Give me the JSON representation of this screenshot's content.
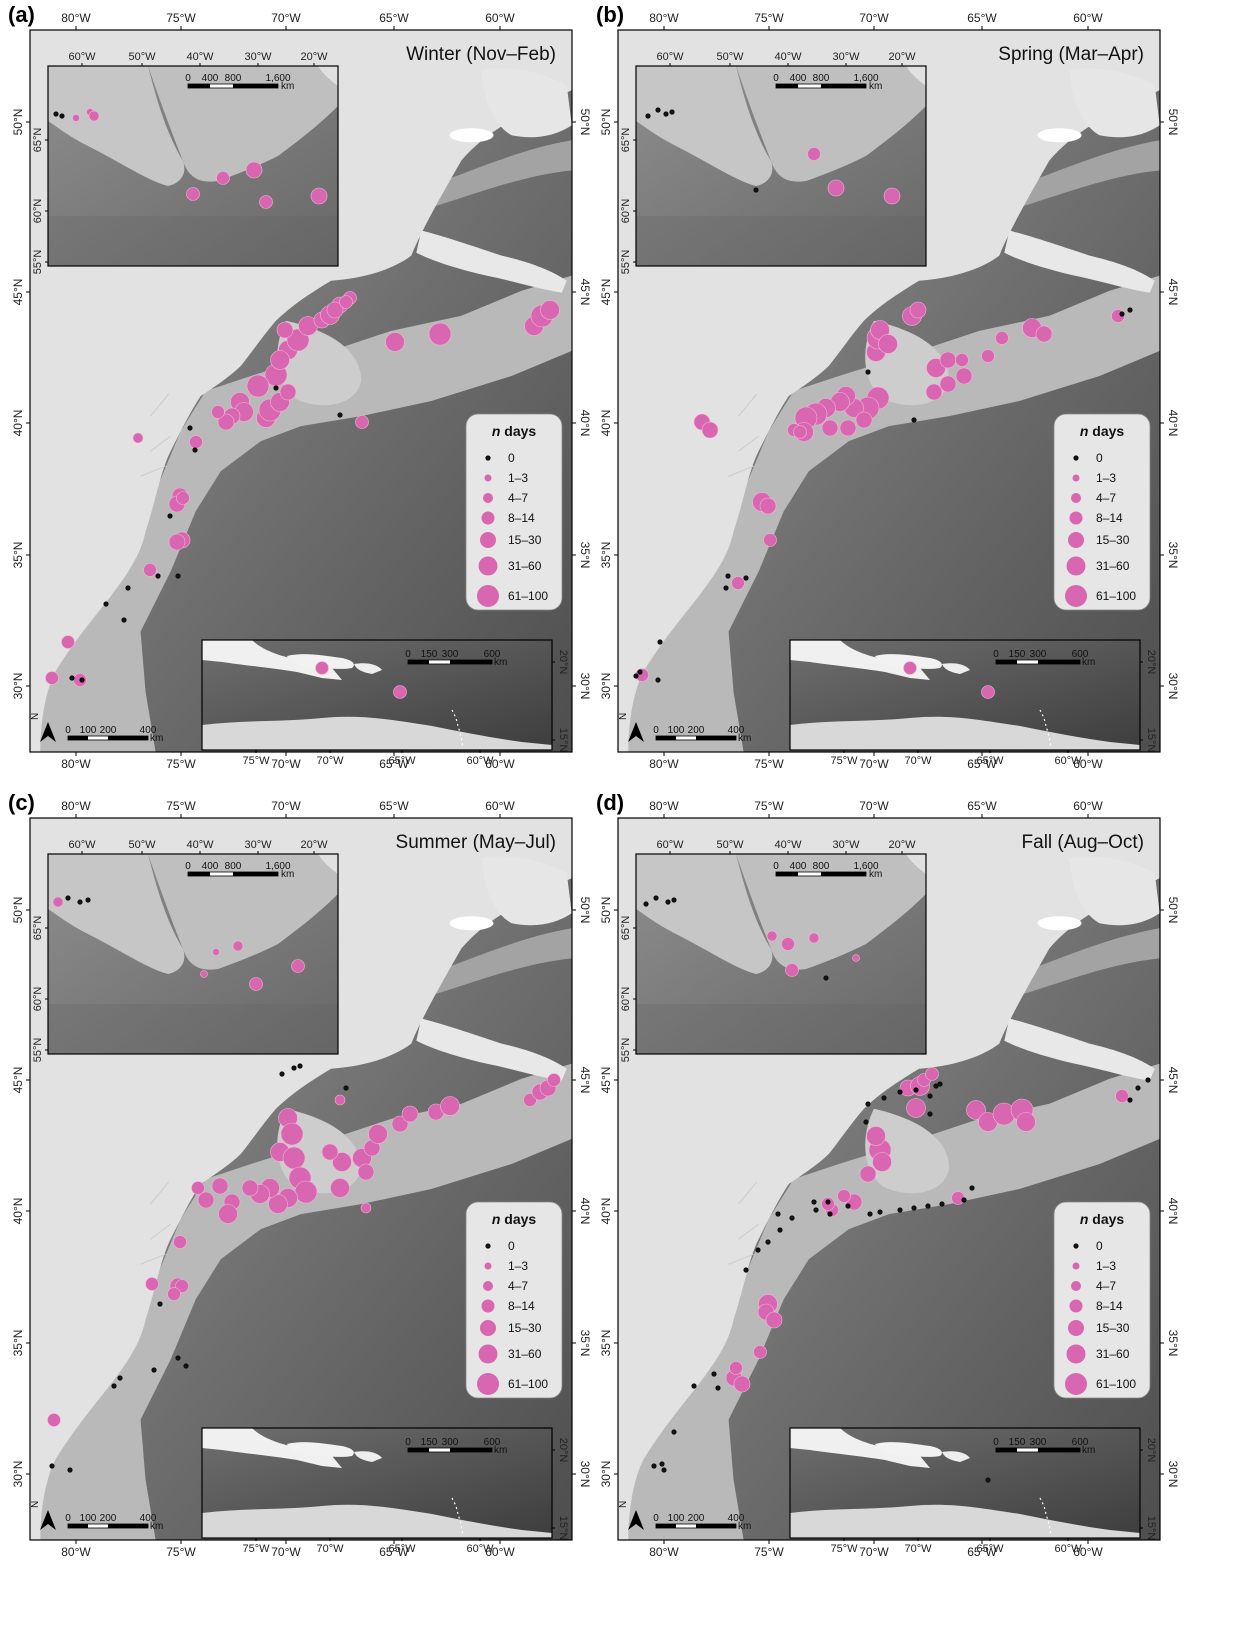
{
  "colors": {
    "detection": "#d866b0",
    "zero": "#111111",
    "land": "#e4e4e4",
    "shelf": "#cfcfcf",
    "deep": "#5a5a5a"
  },
  "main_axes": {
    "lon_ticks": [
      "80°W",
      "75°W",
      "70°W",
      "65°W",
      "60°W"
    ],
    "lat_ticks": [
      "30°N",
      "35°N",
      "40°N",
      "45°N",
      "50°N"
    ]
  },
  "inset_north_axes": {
    "lon_ticks": [
      "60°W",
      "50°W",
      "40°W",
      "30°W",
      "20°W"
    ],
    "lat_ticks": [
      "55°N",
      "60°N",
      "65°N"
    ],
    "scale": {
      "labels": [
        "0",
        "400",
        "800",
        "1,600"
      ],
      "unit": "km"
    }
  },
  "inset_south_axes": {
    "lon_ticks": [
      "75°W",
      "70°W",
      "65°W",
      "60°W"
    ],
    "lat_ticks": [
      "15°N",
      "20°N"
    ],
    "scale": {
      "labels": [
        "0",
        "150",
        "300",
        "600"
      ],
      "unit": "km"
    }
  },
  "main_scale": {
    "labels": [
      "0",
      "100",
      "200",
      "400"
    ],
    "unit": "km"
  },
  "north_arrow": "N",
  "legend": {
    "title_italic": "n",
    "title_rest": " days",
    "items": [
      "0",
      "1–3",
      "4–7",
      "8–14",
      "15–30",
      "31–60",
      "61–100"
    ]
  },
  "panels": [
    {
      "label": "(a)",
      "season": "Winter (Nov–Feb)"
    },
    {
      "label": "(b)",
      "season": "Spring (Mar–Apr)"
    },
    {
      "label": "(c)",
      "season": "Summer (May–Jul)"
    },
    {
      "label": "(d)",
      "season": "Fall (Aug–Oct)"
    }
  ]
}
